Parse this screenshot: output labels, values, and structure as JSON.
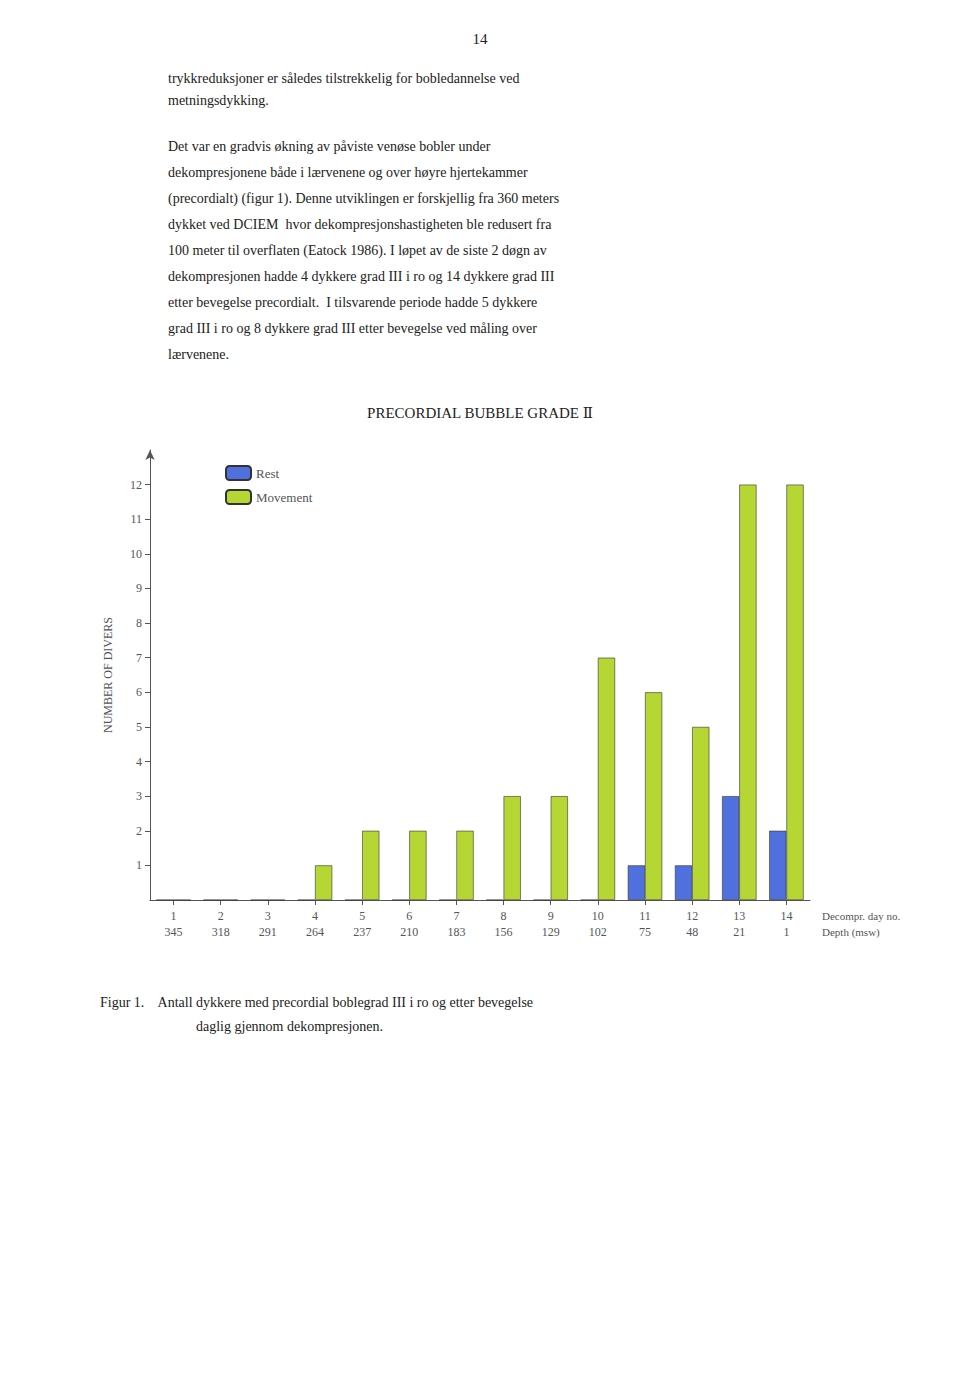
{
  "chart_data": {
    "type": "bar",
    "title": "PRECORDIAL BUBBLE GRADE Ⅱ",
    "ylabel": "NUMBER OF DIVERS",
    "xlabel": [
      "Decompr. day no.",
      "Depth (msw)"
    ],
    "categories": [
      1,
      2,
      3,
      4,
      5,
      6,
      7,
      8,
      9,
      10,
      11,
      12,
      13,
      14
    ],
    "depths": [
      345,
      318,
      291,
      264,
      237,
      210,
      183,
      156,
      129,
      102,
      75,
      48,
      21,
      1
    ],
    "series": [
      {
        "name": "Rest",
        "values": [
          0,
          0,
          0,
          0,
          0,
          0,
          0,
          0,
          0,
          0,
          1,
          1,
          3,
          2
        ]
      },
      {
        "name": "Movement",
        "values": [
          0,
          0,
          0,
          1,
          2,
          2,
          2,
          3,
          3,
          7,
          6,
          5,
          12,
          12
        ]
      }
    ],
    "ylim": [
      0,
      13
    ],
    "yticks": [
      1,
      2,
      3,
      4,
      5,
      6,
      7,
      8,
      9,
      10,
      11,
      12
    ],
    "grid": false,
    "legend": "upper left"
  },
  "page": {
    "page_number": "14",
    "top_text": [
      "trykkreduksjoner er således tilstrekkelig for bobledannelse ved",
      "metningsdykking."
    ],
    "body_text": [
      "Det var en gradvis økning av påviste venøse bobler under",
      "dekompresjonene både i lærvenene og over høyre hjertekammer",
      "(precordialt) (figur 1). Denne utviklingen er forskjellig fra 360 meters",
      "dykket ved DCIEM  hvor dekompresjonshastigheten ble redusert fra",
      "100 meter til overflaten (Eatock 1986). I løpet av de siste 2 døgn av",
      "dekompresjonen hadde 4 dykkere grad III i ro og 14 dykkere grad III",
      "etter bevegelse precordialt.  I tilsvarende periode hadde 5 dykkere",
      "grad III i ro og 8 dykkere grad III etter bevegelse ved måling over",
      "lærvenene."
    ],
    "caption": [
      "Figur 1.    Antall dykkere med precordial boblegrad III i ro og etter bevegelse",
      "daglig gjennom dekompresjonen."
    ]
  }
}
